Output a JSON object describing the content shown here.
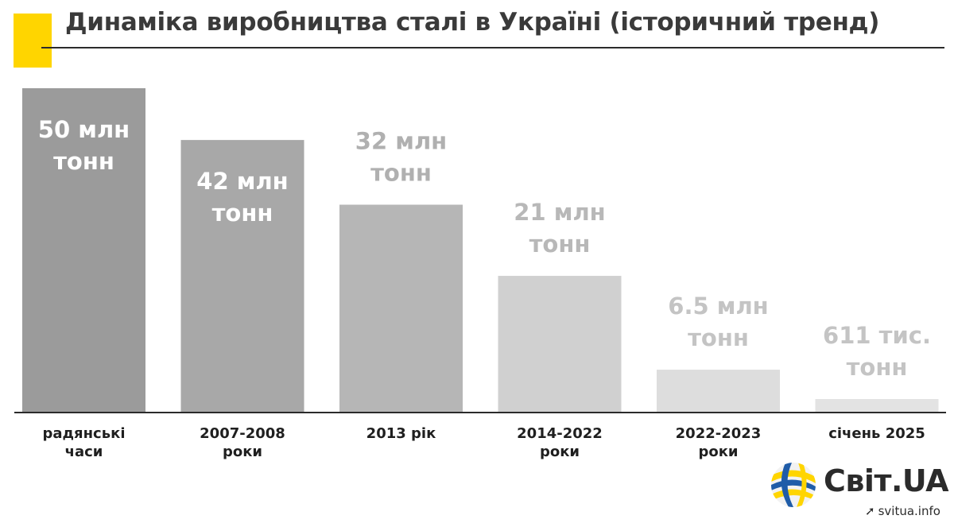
{
  "title": "Динаміка виробництва сталі в Україні (історичний тренд)",
  "accent_color": "#FFD500",
  "brand": {
    "name": "Світ.UA",
    "site": "svitua.info",
    "logo_icon": "yellow-blue-globe-icon",
    "site_icon": "arrow-icon",
    "colors": {
      "yellow": "#FFD500",
      "blue": "#1F5CA8"
    }
  },
  "chart_data": {
    "type": "bar",
    "categories": [
      [
        "радянські",
        "часи"
      ],
      [
        "2007-2008",
        "роки"
      ],
      [
        "2013 рік"
      ],
      [
        "2014-2022",
        "роки"
      ],
      [
        "2022-2023",
        "роки"
      ],
      [
        "січень 2025"
      ]
    ],
    "values": [
      50,
      42,
      32,
      21,
      6.5,
      0.611
    ],
    "unit": "млн тонн",
    "data_labels": [
      [
        "50 млн",
        "тонн"
      ],
      [
        "42 млн",
        "тонн"
      ],
      [
        "32 млн",
        "тонн"
      ],
      [
        "21 млн",
        "тонн"
      ],
      [
        "6.5 млн",
        "тонн"
      ],
      [
        "611 тис.",
        "тонн"
      ]
    ],
    "bar_colors": [
      "#9b9b9b",
      "#a8a8a8",
      "#b6b6b6",
      "#d0d0d0",
      "#dddddd",
      "#e3e3e3"
    ],
    "label_colors": [
      "#ffffff",
      "#ffffff",
      "#b0b0b0",
      "#b8b8b8",
      "#c4c4c4",
      "#c4c4c4"
    ],
    "ylim": [
      0,
      50
    ],
    "grid": false,
    "legend": "none"
  }
}
